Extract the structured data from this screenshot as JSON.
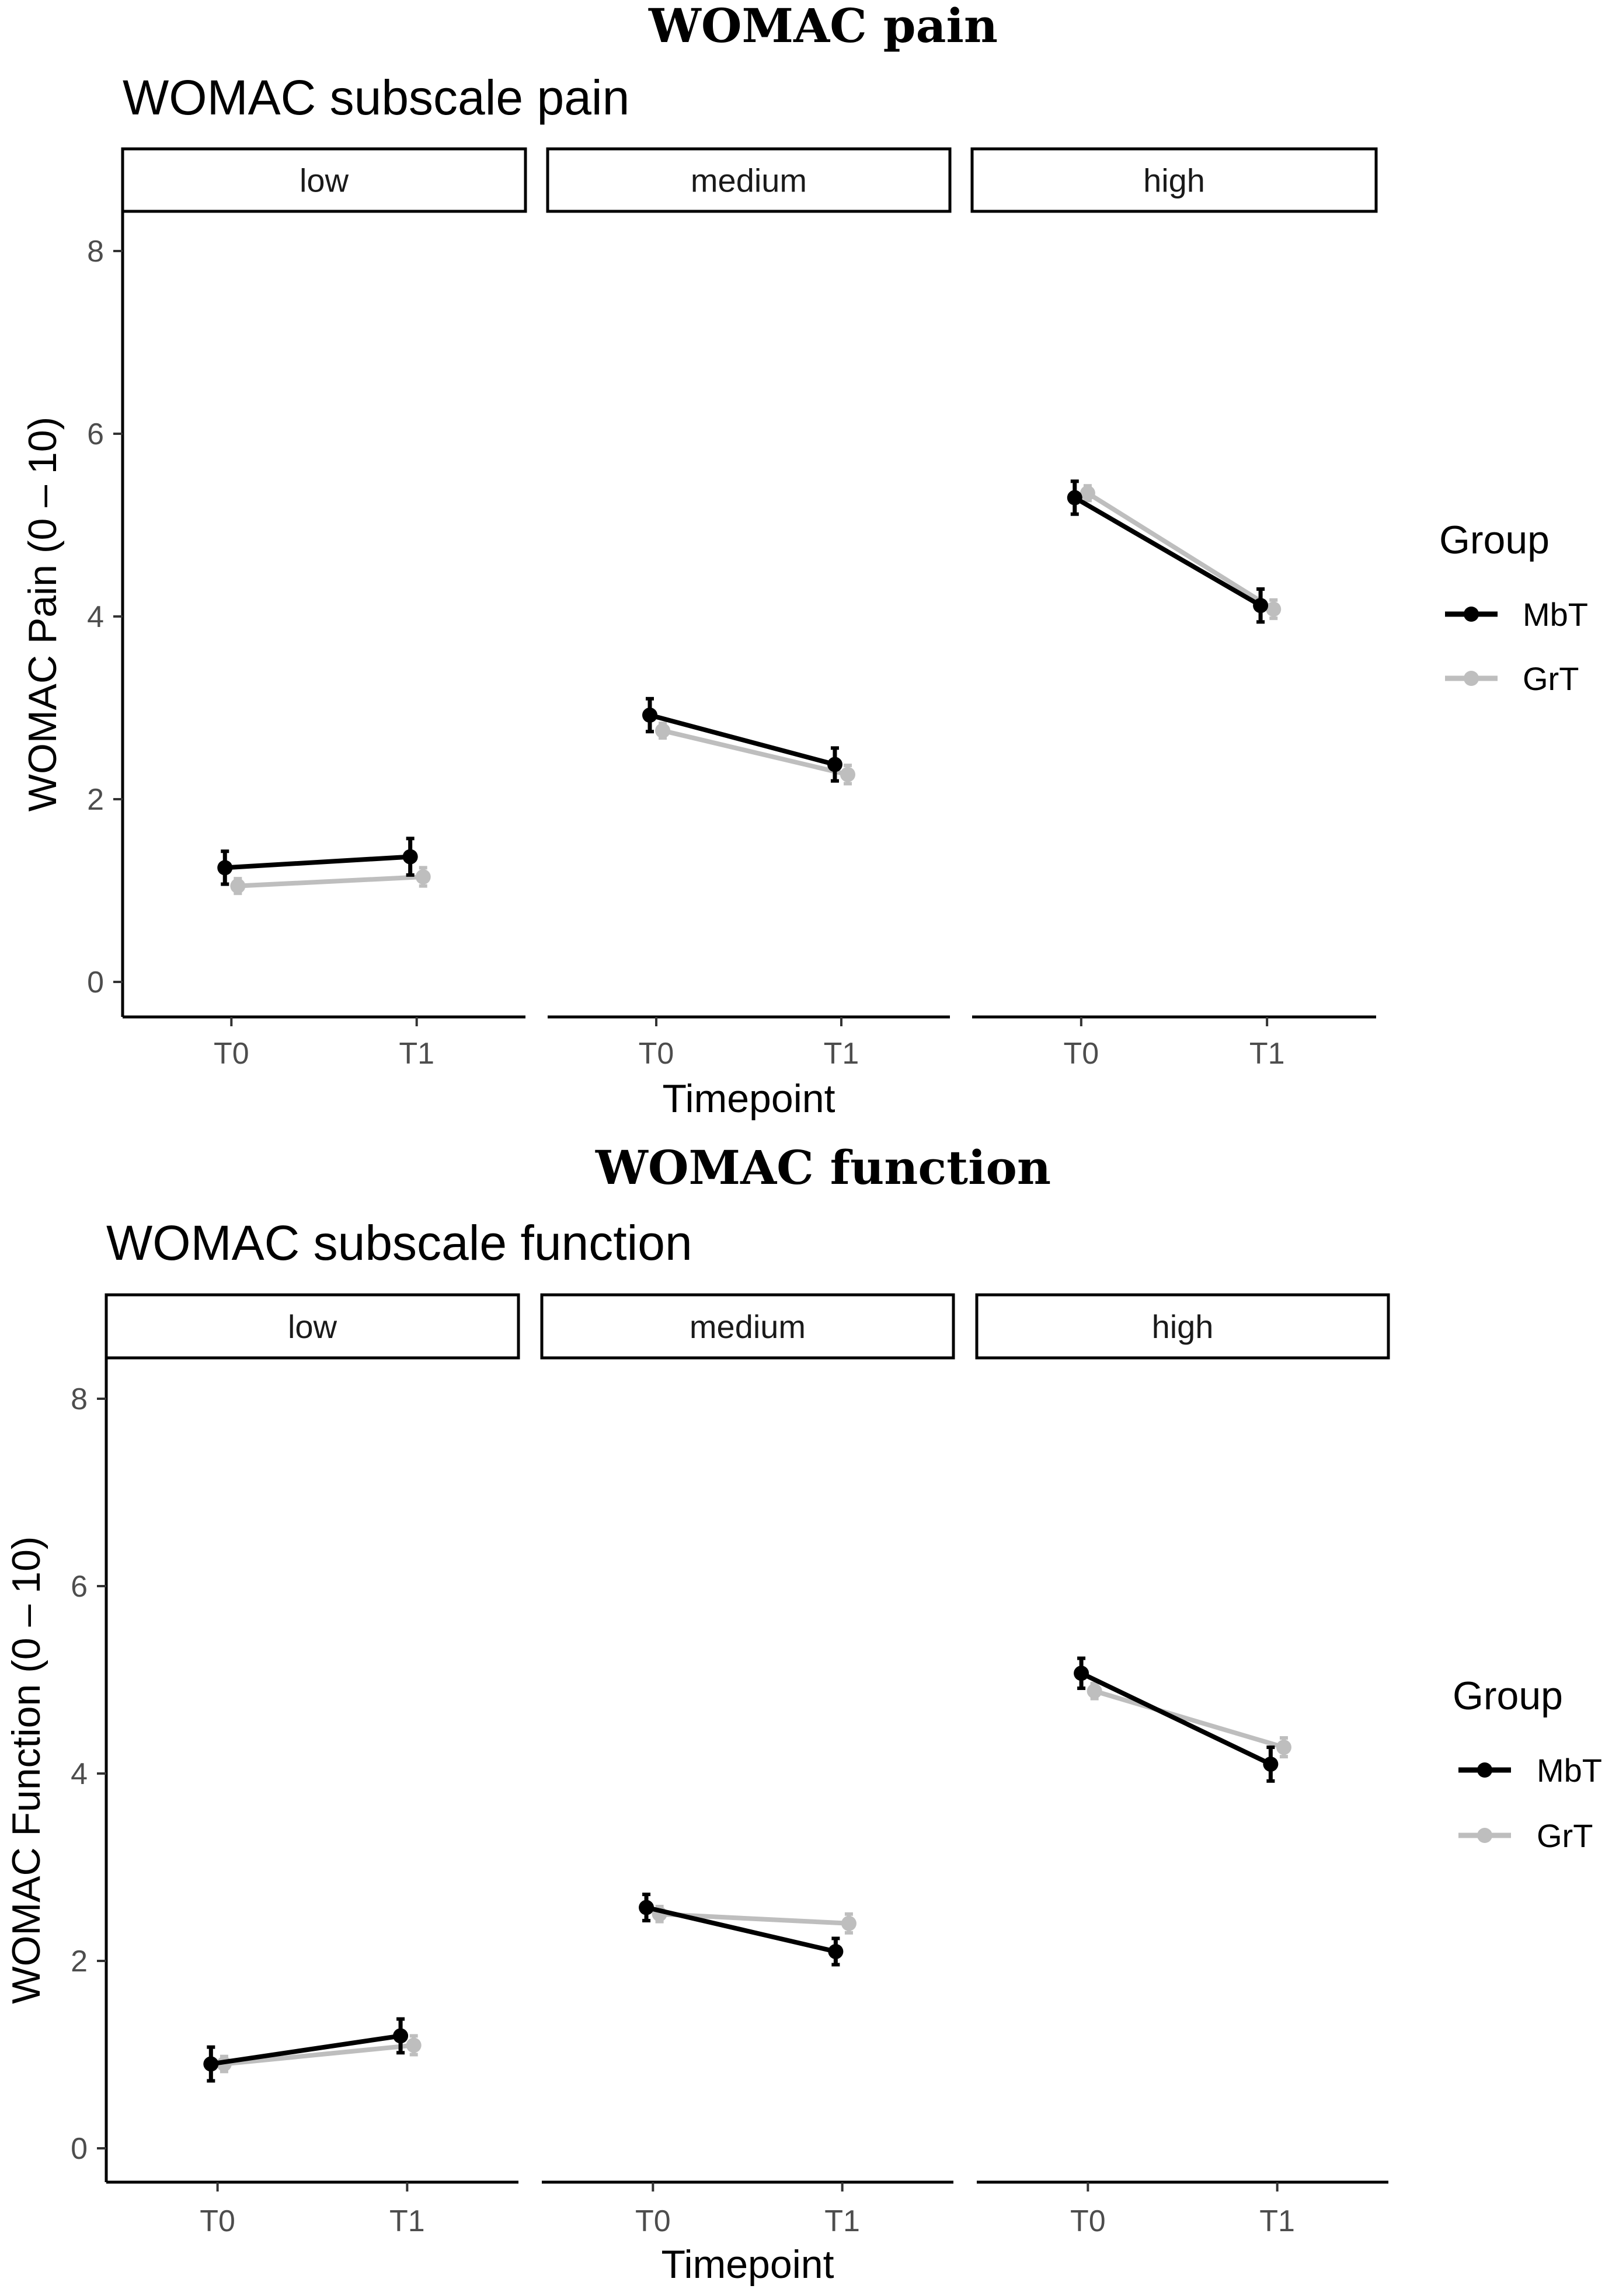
{
  "colors": {
    "MbT": "#000000",
    "GrT": "#bebebe",
    "axis": "#000000",
    "tick_text": "#4d4d4d"
  },
  "chart_data": [
    {
      "type": "line",
      "title": "WOMAC pain",
      "subtitle": "WOMAC subscale pain",
      "xlabel": "Timepoint",
      "ylabel": "WOMAC Pain (0 – 10)",
      "ylim": [
        -0.35,
        8.4
      ],
      "yticks": [
        0,
        2,
        4,
        6,
        8
      ],
      "x": [
        "T0",
        "T1"
      ],
      "legend": {
        "title": "Group",
        "position": "right",
        "entries": [
          "MbT",
          "GrT"
        ]
      },
      "panels": [
        {
          "label": "low",
          "series": [
            {
              "name": "MbT",
              "values": [
                1.25,
                1.37
              ],
              "err": [
                0.18,
                0.2
              ]
            },
            {
              "name": "GrT",
              "values": [
                1.05,
                1.15
              ],
              "err": [
                0.08,
                0.1
              ]
            }
          ]
        },
        {
          "label": "medium",
          "series": [
            {
              "name": "MbT",
              "values": [
                2.92,
                2.38
              ],
              "err": [
                0.18,
                0.18
              ]
            },
            {
              "name": "GrT",
              "values": [
                2.75,
                2.27
              ],
              "err": [
                0.08,
                0.1
              ]
            }
          ]
        },
        {
          "label": "high",
          "series": [
            {
              "name": "MbT",
              "values": [
                5.3,
                4.12
              ],
              "err": [
                0.18,
                0.18
              ]
            },
            {
              "name": "GrT",
              "values": [
                5.35,
                4.08
              ],
              "err": [
                0.08,
                0.1
              ]
            }
          ]
        }
      ]
    },
    {
      "type": "line",
      "title": "WOMAC function",
      "subtitle": "WOMAC subscale function",
      "xlabel": "Timepoint",
      "ylabel": "WOMAC Function (0 – 10)",
      "ylim": [
        -0.35,
        8.4
      ],
      "yticks": [
        0,
        2,
        4,
        6,
        8
      ],
      "x": [
        "T0",
        "T1"
      ],
      "legend": {
        "title": "Group",
        "position": "right",
        "entries": [
          "MbT",
          "GrT"
        ]
      },
      "panels": [
        {
          "label": "low",
          "series": [
            {
              "name": "MbT",
              "values": [
                0.9,
                1.2
              ],
              "err": [
                0.18,
                0.18
              ]
            },
            {
              "name": "GrT",
              "values": [
                0.9,
                1.1
              ],
              "err": [
                0.08,
                0.1
              ]
            }
          ]
        },
        {
          "label": "medium",
          "series": [
            {
              "name": "MbT",
              "values": [
                2.57,
                2.1
              ],
              "err": [
                0.14,
                0.14
              ]
            },
            {
              "name": "GrT",
              "values": [
                2.5,
                2.4
              ],
              "err": [
                0.08,
                0.1
              ]
            }
          ]
        },
        {
          "label": "high",
          "series": [
            {
              "name": "MbT",
              "values": [
                5.07,
                4.1
              ],
              "err": [
                0.16,
                0.18
              ]
            },
            {
              "name": "GrT",
              "values": [
                4.88,
                4.28
              ],
              "err": [
                0.08,
                0.1
              ]
            }
          ]
        }
      ]
    }
  ]
}
